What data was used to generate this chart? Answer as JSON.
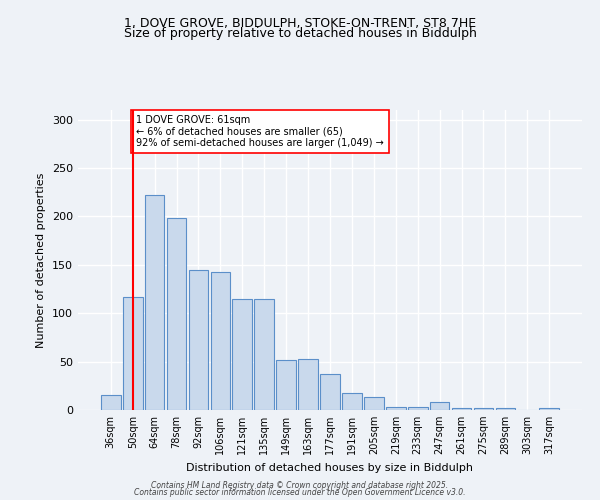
{
  "title_line1": "1, DOVE GROVE, BIDDULPH, STOKE-ON-TRENT, ST8 7HE",
  "title_line2": "Size of property relative to detached houses in Biddulph",
  "xlabel": "Distribution of detached houses by size in Biddulph",
  "ylabel": "Number of detached properties",
  "categories": [
    "36sqm",
    "50sqm",
    "64sqm",
    "78sqm",
    "92sqm",
    "106sqm",
    "121sqm",
    "135sqm",
    "149sqm",
    "163sqm",
    "177sqm",
    "191sqm",
    "205sqm",
    "219sqm",
    "233sqm",
    "247sqm",
    "261sqm",
    "275sqm",
    "289sqm",
    "303sqm",
    "317sqm"
  ],
  "values": [
    15,
    117,
    222,
    198,
    145,
    143,
    115,
    115,
    52,
    53,
    37,
    18,
    13,
    3,
    3,
    8,
    2,
    2,
    2,
    0,
    2
  ],
  "bar_color": "#c9d9ec",
  "bar_edge_color": "#5b8fc9",
  "bar_edge_width": 0.8,
  "vline_x_index": 1,
  "vline_color": "red",
  "annotation_text": "1 DOVE GROVE: 61sqm\n← 6% of detached houses are smaller (65)\n92% of semi-detached houses are larger (1,049) →",
  "annotation_box_color": "white",
  "annotation_box_edge_color": "red",
  "ylim": [
    0,
    310
  ],
  "yticks": [
    0,
    50,
    100,
    150,
    200,
    250,
    300
  ],
  "background_color": "#eef2f7",
  "grid_color": "white",
  "footnote1": "Contains HM Land Registry data © Crown copyright and database right 2025.",
  "footnote2": "Contains public sector information licensed under the Open Government Licence v3.0."
}
